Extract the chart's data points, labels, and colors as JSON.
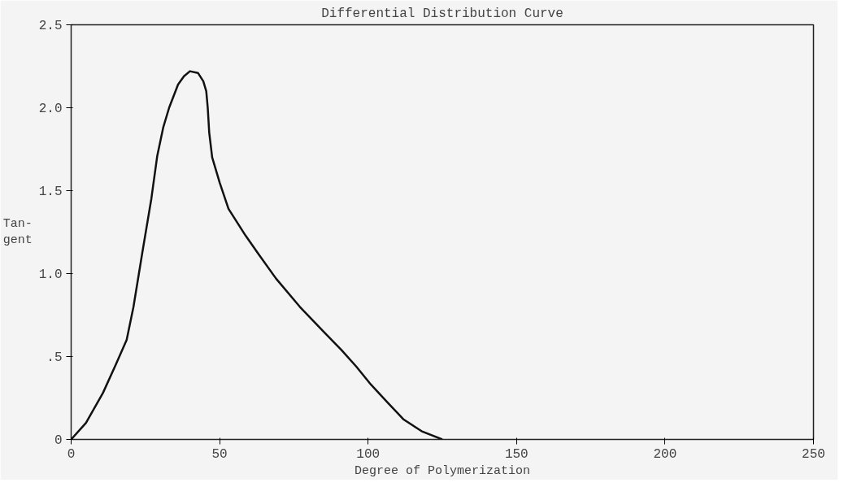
{
  "chart_data": {
    "type": "line",
    "title": "Differential Distribution Curve",
    "xlabel": "Degree of Polymerization",
    "ylabel": "Tan-\ngent",
    "series": [
      {
        "color": "#111111",
        "x": [
          0,
          5,
          10.7,
          15,
          18.7,
          21,
          24,
          27,
          29,
          31,
          33,
          36,
          38,
          40,
          42.7,
          44.5,
          45.5,
          46,
          46.5,
          47.5,
          50,
          53,
          58.7,
          63,
          69,
          77,
          85,
          91,
          96,
          101,
          106.7,
          112,
          118,
          125
        ],
        "values": [
          0,
          0.1,
          0.28,
          0.45,
          0.6,
          0.8,
          1.13,
          1.45,
          1.71,
          1.88,
          2.0,
          2.14,
          2.19,
          2.22,
          2.21,
          2.16,
          2.1,
          2.0,
          1.85,
          1.7,
          1.55,
          1.39,
          1.23,
          1.12,
          0.97,
          0.8,
          0.65,
          0.54,
          0.44,
          0.33,
          0.22,
          0.12,
          0.05,
          0
        ]
      }
    ],
    "xlim": [
      0,
      250
    ],
    "ylim": [
      0,
      2.5
    ],
    "xticks": [
      0,
      50,
      100,
      150,
      200,
      250
    ],
    "yticks": [
      0,
      {
        "value": 0.5,
        "label": ".5"
      },
      {
        "value": 1.0,
        "label": "1.0"
      },
      {
        "value": 1.5,
        "label": "1.5"
      },
      {
        "value": 2.0,
        "label": "2.0"
      },
      2.5
    ],
    "grid": false,
    "marker": "none",
    "line_style": "solid"
  }
}
